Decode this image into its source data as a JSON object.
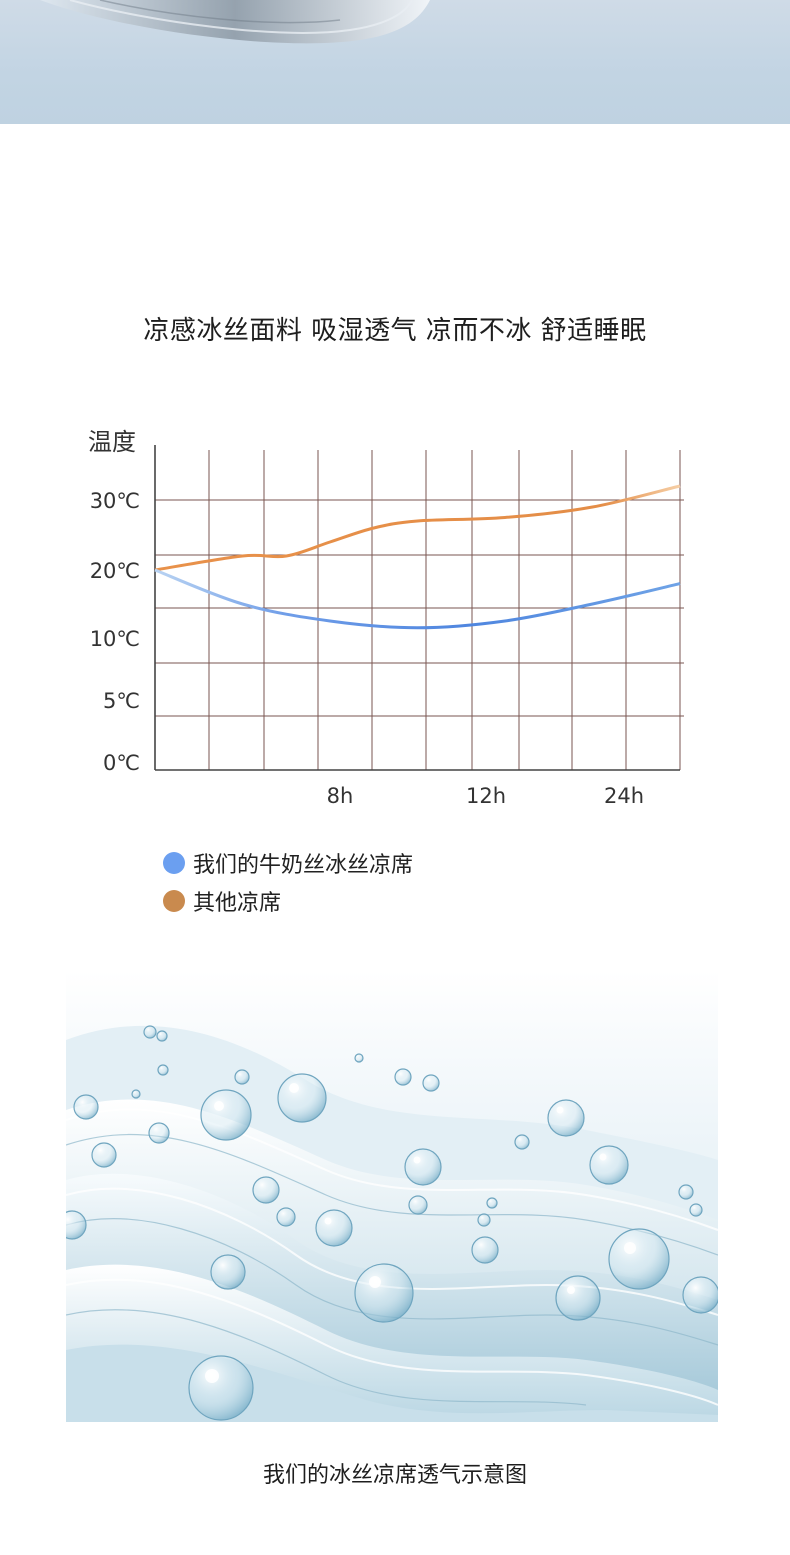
{
  "headline": "凉感冰丝面料 吸湿透气 凉而不冰 舒适睡眠",
  "chart_data": {
    "type": "line",
    "ylabel": "温度",
    "ytick_labels": [
      "30℃",
      "20℃",
      "10℃",
      "5℃",
      "0℃"
    ],
    "xtick_labels": [
      "8h",
      "12h",
      "24h"
    ],
    "grid": true,
    "legend_placement": "below",
    "series": [
      {
        "name": "我们的牛奶丝冰丝凉席",
        "color": "#5a8fe0",
        "points": [
          [
            0,
            20
          ],
          [
            2,
            15
          ],
          [
            4,
            12.5
          ],
          [
            6,
            11.5
          ],
          [
            8,
            12.5
          ],
          [
            10,
            15
          ],
          [
            12,
            18
          ]
        ]
      },
      {
        "name": "其他凉席",
        "color": "#e08a3c",
        "points": [
          [
            0,
            20
          ],
          [
            2,
            22
          ],
          [
            3,
            22
          ],
          [
            4,
            24
          ],
          [
            5,
            26
          ],
          [
            6,
            27
          ],
          [
            8,
            27.5
          ],
          [
            10,
            29
          ],
          [
            12,
            32
          ]
        ]
      }
    ]
  },
  "legend": {
    "items": [
      {
        "label": "我们的牛奶丝冰丝凉席",
        "color": "#6b9ff0"
      },
      {
        "label": "其他凉席",
        "color": "#c98a4e"
      }
    ]
  },
  "caption": "我们的冰丝凉席透气示意图"
}
